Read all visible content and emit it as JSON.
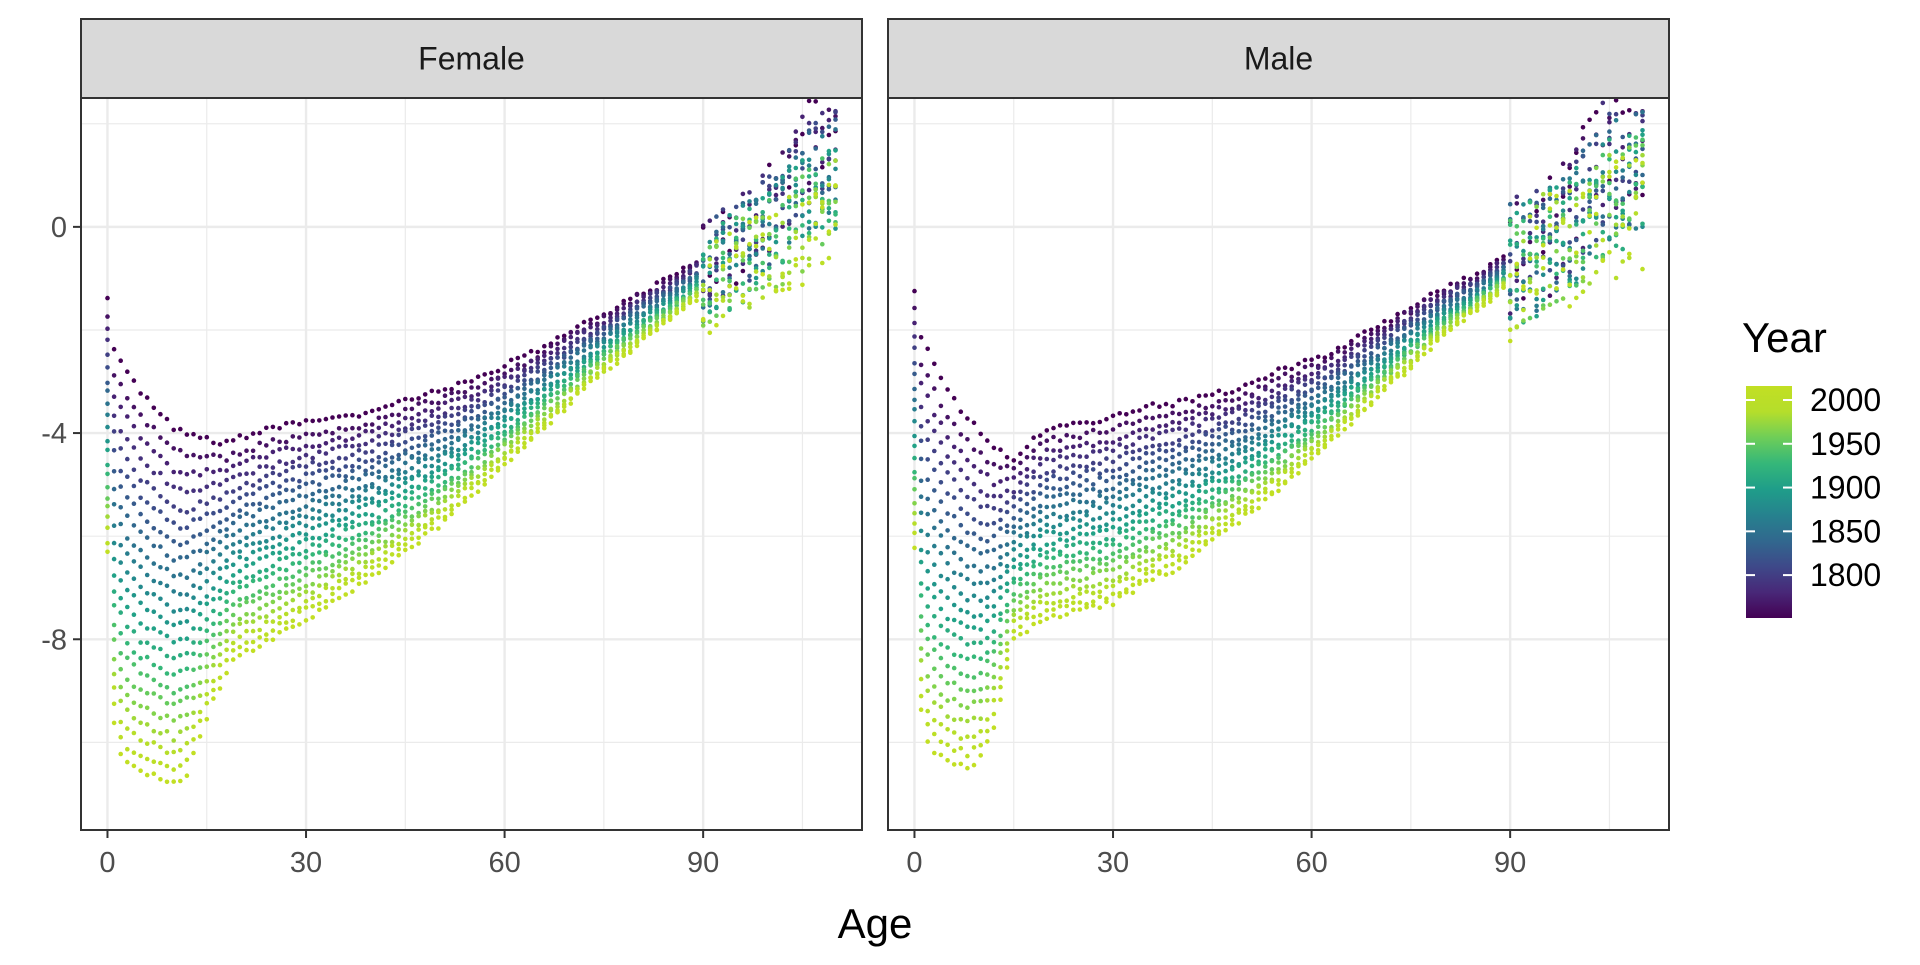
{
  "chart_data": {
    "type": "scatter",
    "xlabel": "Age",
    "ylabel": "",
    "xlim": [
      -4,
      114
    ],
    "ylim": [
      -11.7,
      2.5
    ],
    "x_ticks": [
      0,
      30,
      60,
      90
    ],
    "y_ticks": [
      0,
      -4,
      -8
    ],
    "x_tick_labels": [
      "0",
      "30",
      "60",
      "90"
    ],
    "y_tick_labels": [
      "0",
      "-4",
      "-8"
    ],
    "grid": true,
    "legend": {
      "title": "Year",
      "placement": "right",
      "type": "colorbar",
      "range": [
        1751,
        2016
      ],
      "breaks": [
        2000,
        1950,
        1900,
        1850,
        1800
      ],
      "break_labels": [
        "2000",
        "1950",
        "1900",
        "1850",
        "1800"
      ],
      "colors": [
        "#440154",
        "#482878",
        "#3e4989",
        "#31688e",
        "#26828e",
        "#1f9e89",
        "#35b779",
        "#6ece58",
        "#b5de2b",
        "#c2df23"
      ]
    },
    "series_model": "Each dot is one (age, year) observation; points are plotted for every age 0-110 and every year in the range; y is the value read off the curves below at that age, interpolated by year between the oldest (1751) and the most recent (2016) cohort.",
    "facets": [
      {
        "name": "Female",
        "ages": [
          0,
          1,
          2,
          3,
          5,
          8,
          10,
          12,
          15,
          18,
          20,
          25,
          30,
          35,
          40,
          45,
          50,
          55,
          60,
          65,
          70,
          75,
          80,
          85,
          90,
          95,
          100,
          105,
          110
        ],
        "oldest_year_values": [
          -1.4,
          -2.4,
          -2.6,
          -2.8,
          -3.2,
          -3.6,
          -3.9,
          -4.0,
          -4.1,
          -4.2,
          -4.1,
          -3.9,
          -3.8,
          -3.7,
          -3.6,
          -3.35,
          -3.2,
          -3.0,
          -2.7,
          -2.4,
          -2.0,
          -1.7,
          -1.3,
          -1.0,
          -0.6,
          -0.2,
          0.5,
          1.6,
          1.7
        ],
        "latest_year_values": [
          -6.3,
          -9.6,
          -10.2,
          -10.4,
          -10.6,
          -10.7,
          -10.8,
          -10.6,
          -9.5,
          -8.6,
          -8.3,
          -8.0,
          -7.6,
          -7.2,
          -6.8,
          -6.3,
          -5.8,
          -5.2,
          -4.6,
          -4.0,
          -3.4,
          -2.8,
          -2.3,
          -1.8,
          -1.3,
          -0.9,
          -0.6,
          -0.3,
          0.2
        ],
        "spread_above_90": 0.9,
        "x_range": [
          0,
          110
        ]
      },
      {
        "name": "Male",
        "ages": [
          0,
          1,
          2,
          3,
          5,
          8,
          10,
          12,
          15,
          18,
          20,
          25,
          30,
          35,
          40,
          45,
          50,
          55,
          60,
          65,
          70,
          75,
          80,
          85,
          90,
          95,
          100,
          105,
          110
        ],
        "oldest_year_values": [
          -1.3,
          -2.2,
          -2.4,
          -2.7,
          -3.2,
          -3.7,
          -4.0,
          -4.3,
          -4.5,
          -4.1,
          -3.9,
          -3.8,
          -3.7,
          -3.5,
          -3.4,
          -3.25,
          -3.1,
          -2.8,
          -2.6,
          -2.3,
          -1.95,
          -1.55,
          -1.2,
          -0.95,
          -0.5,
          -0.3,
          0.6,
          1.7,
          1.7
        ],
        "latest_year_values": [
          -6.2,
          -9.4,
          -10.0,
          -10.2,
          -10.4,
          -10.5,
          -10.3,
          -9.7,
          -8.0,
          -7.7,
          -7.6,
          -7.45,
          -7.3,
          -6.9,
          -6.6,
          -6.1,
          -5.6,
          -5.1,
          -4.5,
          -3.9,
          -3.3,
          -2.7,
          -2.1,
          -1.6,
          -1.1,
          -0.6,
          -0.3,
          0.0,
          0.3
        ],
        "spread_above_90": 1.2,
        "x_range": [
          0,
          110
        ]
      }
    ]
  }
}
